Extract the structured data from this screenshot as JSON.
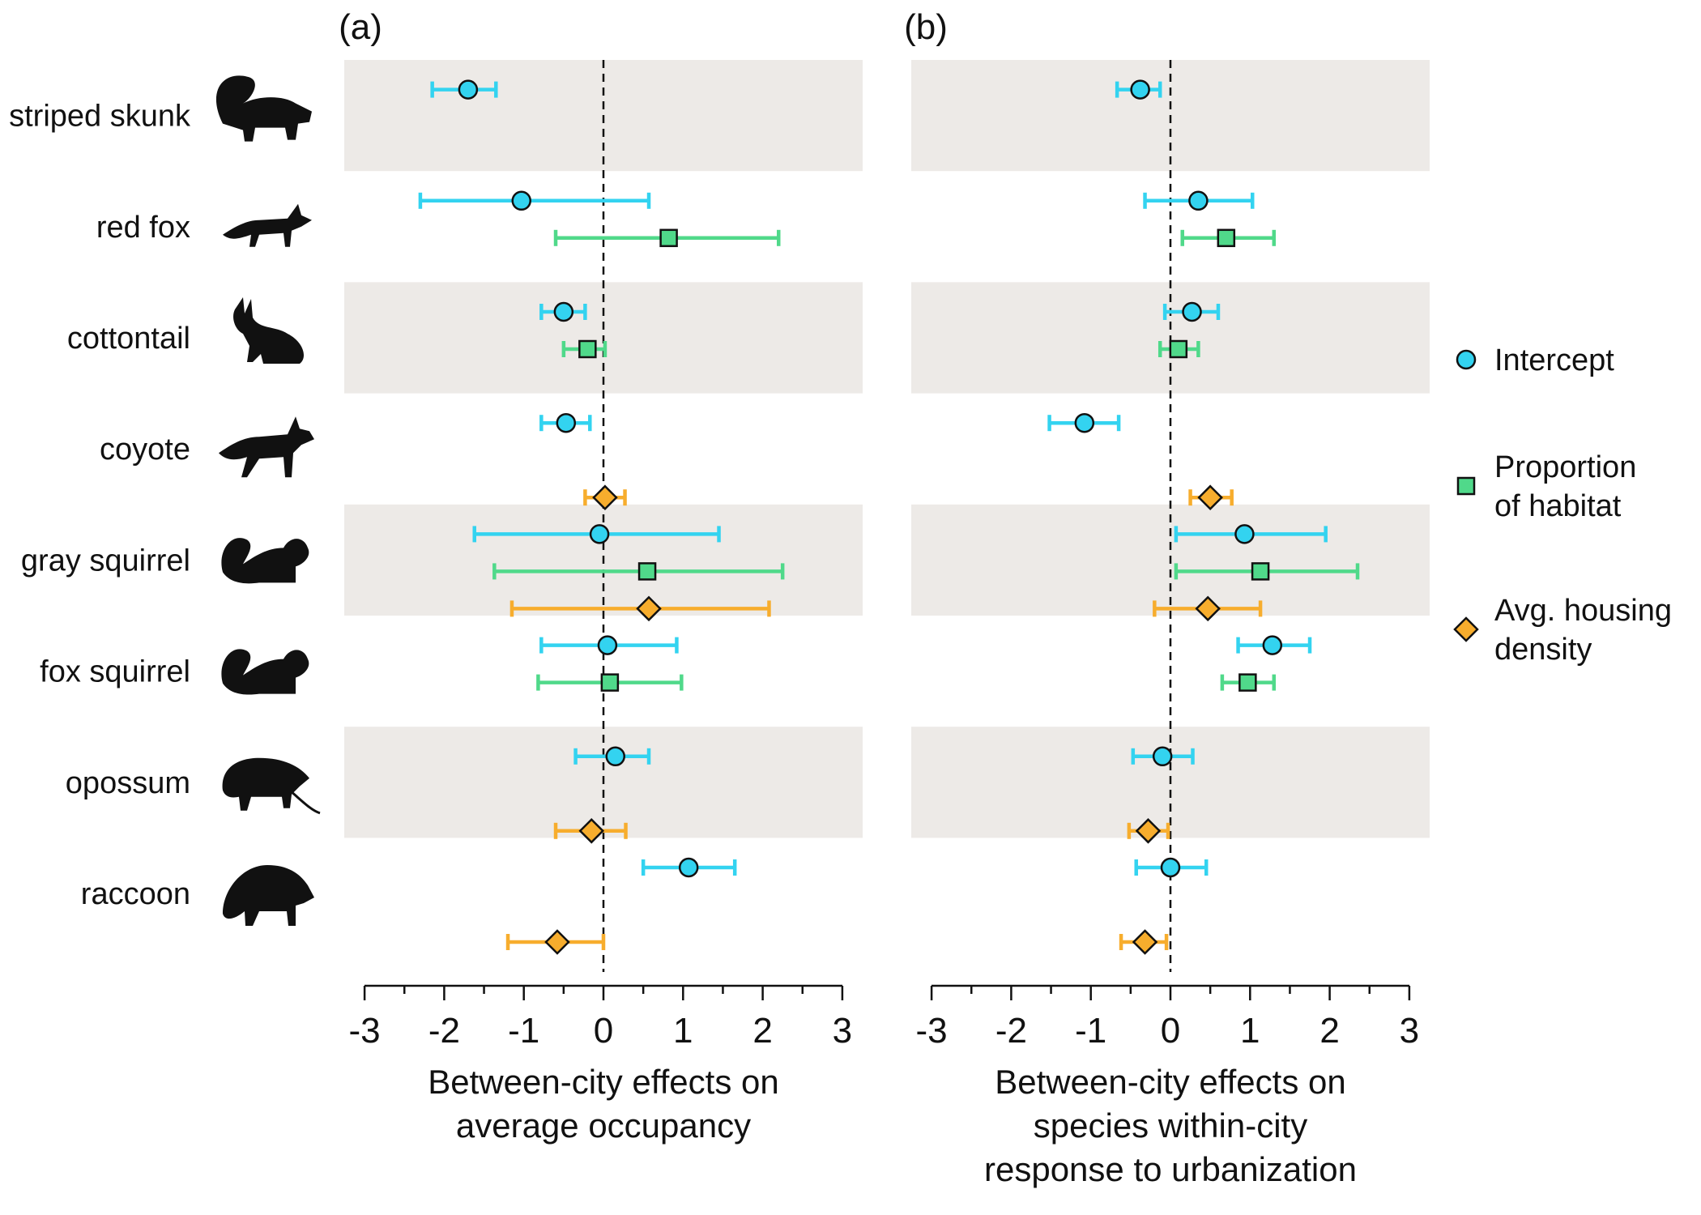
{
  "chart_data": [
    {
      "type": "forest",
      "panel_label": "(a)",
      "xlabel": [
        "Between-city effects on",
        "average occupancy"
      ],
      "xlim": [
        -3,
        3
      ],
      "xticks": [
        "-3",
        "-2",
        "-1",
        "0",
        "1",
        "2",
        "3"
      ],
      "reference_line": 0,
      "rows": [
        {
          "species": "striped skunk",
          "estimates": [
            {
              "series": "Intercept",
              "value": -1.7,
              "lower": -2.15,
              "upper": -1.35
            }
          ]
        },
        {
          "species": "red fox",
          "estimates": [
            {
              "series": "Intercept",
              "value": -1.03,
              "lower": -2.3,
              "upper": 0.57
            },
            {
              "series": "Proportion of habitat",
              "value": 0.82,
              "lower": -0.6,
              "upper": 2.2
            }
          ]
        },
        {
          "species": "cottontail",
          "estimates": [
            {
              "series": "Intercept",
              "value": -0.5,
              "lower": -0.78,
              "upper": -0.23
            },
            {
              "series": "Proportion of habitat",
              "value": -0.2,
              "lower": -0.5,
              "upper": 0.02
            }
          ]
        },
        {
          "species": "coyote",
          "estimates": [
            {
              "series": "Intercept",
              "value": -0.47,
              "lower": -0.78,
              "upper": -0.17
            },
            {
              "series": "Avg. housing density",
              "value": 0.02,
              "lower": -0.23,
              "upper": 0.27
            }
          ]
        },
        {
          "species": "gray squirrel",
          "estimates": [
            {
              "series": "Intercept",
              "value": -0.05,
              "lower": -1.62,
              "upper": 1.45
            },
            {
              "series": "Proportion of habitat",
              "value": 0.55,
              "lower": -1.37,
              "upper": 2.25
            },
            {
              "series": "Avg. housing density",
              "value": 0.57,
              "lower": -1.15,
              "upper": 2.08
            }
          ]
        },
        {
          "species": "fox squirrel",
          "estimates": [
            {
              "series": "Intercept",
              "value": 0.05,
              "lower": -0.78,
              "upper": 0.92
            },
            {
              "series": "Proportion of habitat",
              "value": 0.08,
              "lower": -0.82,
              "upper": 0.98
            }
          ]
        },
        {
          "species": "opossum",
          "estimates": [
            {
              "series": "Intercept",
              "value": 0.15,
              "lower": -0.35,
              "upper": 0.57
            },
            {
              "series": "Avg. housing density",
              "value": -0.15,
              "lower": -0.6,
              "upper": 0.28
            }
          ]
        },
        {
          "species": "raccoon",
          "estimates": [
            {
              "series": "Intercept",
              "value": 1.07,
              "lower": 0.5,
              "upper": 1.65
            },
            {
              "series": "Avg. housing density",
              "value": -0.58,
              "lower": -1.2,
              "upper": 0.0
            }
          ]
        }
      ]
    },
    {
      "type": "forest",
      "panel_label": "(b)",
      "xlabel": [
        "Between-city effects on",
        "species within-city",
        "response to urbanization"
      ],
      "xlim": [
        -3,
        3
      ],
      "xticks": [
        "-3",
        "-2",
        "-1",
        "0",
        "1",
        "2",
        "3"
      ],
      "reference_line": 0,
      "rows": [
        {
          "species": "striped skunk",
          "estimates": [
            {
              "series": "Intercept",
              "value": -0.38,
              "lower": -0.67,
              "upper": -0.13
            }
          ]
        },
        {
          "species": "red fox",
          "estimates": [
            {
              "series": "Intercept",
              "value": 0.35,
              "lower": -0.32,
              "upper": 1.03
            },
            {
              "series": "Proportion of habitat",
              "value": 0.7,
              "lower": 0.15,
              "upper": 1.3
            }
          ]
        },
        {
          "species": "cottontail",
          "estimates": [
            {
              "series": "Intercept",
              "value": 0.27,
              "lower": -0.07,
              "upper": 0.6
            },
            {
              "series": "Proportion of habitat",
              "value": 0.1,
              "lower": -0.13,
              "upper": 0.35
            }
          ]
        },
        {
          "species": "coyote",
          "estimates": [
            {
              "series": "Intercept",
              "value": -1.08,
              "lower": -1.52,
              "upper": -0.65
            },
            {
              "series": "Avg. housing density",
              "value": 0.5,
              "lower": 0.25,
              "upper": 0.77
            }
          ]
        },
        {
          "species": "gray squirrel",
          "estimates": [
            {
              "series": "Intercept",
              "value": 0.93,
              "lower": 0.07,
              "upper": 1.95
            },
            {
              "series": "Proportion of habitat",
              "value": 1.13,
              "lower": 0.07,
              "upper": 2.35
            },
            {
              "series": "Avg. housing density",
              "value": 0.47,
              "lower": -0.2,
              "upper": 1.13
            }
          ]
        },
        {
          "species": "fox squirrel",
          "estimates": [
            {
              "series": "Intercept",
              "value": 1.28,
              "lower": 0.85,
              "upper": 1.75
            },
            {
              "series": "Proportion of habitat",
              "value": 0.97,
              "lower": 0.65,
              "upper": 1.3
            }
          ]
        },
        {
          "species": "opossum",
          "estimates": [
            {
              "series": "Intercept",
              "value": -0.1,
              "lower": -0.47,
              "upper": 0.28
            },
            {
              "series": "Avg. housing density",
              "value": -0.28,
              "lower": -0.52,
              "upper": -0.03
            }
          ]
        },
        {
          "species": "raccoon",
          "estimates": [
            {
              "series": "Intercept",
              "value": 0.0,
              "lower": -0.43,
              "upper": 0.45
            },
            {
              "series": "Avg. housing density",
              "value": -0.32,
              "lower": -0.62,
              "upper": -0.05
            }
          ]
        }
      ]
    }
  ],
  "species": [
    "striped skunk",
    "red fox",
    "cottontail",
    "coyote",
    "gray squirrel",
    "fox squirrel",
    "opossum",
    "raccoon"
  ],
  "species_icons": [
    "skunk-silhouette-icon",
    "fox-silhouette-icon",
    "rabbit-silhouette-icon",
    "coyote-silhouette-icon",
    "squirrel-silhouette-icon",
    "squirrel-silhouette-icon",
    "opossum-silhouette-icon",
    "raccoon-silhouette-icon"
  ],
  "legend": [
    {
      "series": "Intercept",
      "lines": [
        "Intercept"
      ],
      "marker": "circle",
      "color": "#33d3f0"
    },
    {
      "series": "Proportion of habitat",
      "lines": [
        "Proportion",
        "of habitat"
      ],
      "marker": "square",
      "color": "#50d98a"
    },
    {
      "series": "Avg. housing density",
      "lines": [
        "Avg. housing",
        "density"
      ],
      "marker": "diamond",
      "color": "#f7ad2d"
    }
  ],
  "colors": {
    "band": "#edeae7",
    "intercept": "#33d3f0",
    "habitat": "#50d98a",
    "housing": "#f7ad2d",
    "axis": "#111111"
  }
}
